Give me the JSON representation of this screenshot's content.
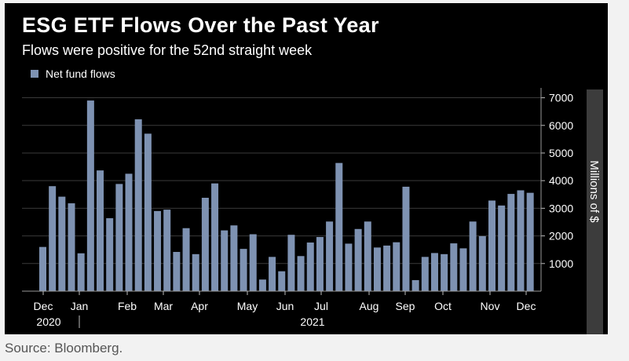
{
  "title": "ESG ETF Flows Over the Past Year",
  "subtitle": "Flows were positive for the 52nd straight week",
  "source": "Source: Bloomberg.",
  "colors": {
    "background": "#000000",
    "bar": "#7e92b2",
    "text": "#ffffff",
    "grid": "#3a3a3a",
    "unit_band": "#3c3c3c"
  },
  "chart_data": {
    "type": "bar",
    "legend": {
      "label": "Net fund flows",
      "position": "top-left"
    },
    "ylabel": "Millions of $",
    "ylim": [
      0,
      7300
    ],
    "yticks": [
      1000,
      2000,
      3000,
      4000,
      5000,
      6000,
      7000
    ],
    "ytick_labels": [
      "1000",
      "2000",
      "3000",
      "4000",
      "5000",
      "6000",
      "7000"
    ],
    "grid": true,
    "x_month_labels": [
      "Dec",
      "Jan",
      "Feb",
      "Mar",
      "Apr",
      "May",
      "Jun",
      "Jul",
      "Aug",
      "Sep",
      "Oct",
      "Nov",
      "Dec"
    ],
    "x_year_labels": [
      "2020",
      "2021"
    ],
    "series": [
      {
        "values": [
          1600,
          3800,
          3420,
          3180,
          1370,
          6900,
          4370,
          2640,
          3880,
          4250,
          6220,
          5700,
          2900,
          2950,
          1420,
          2280,
          1340,
          3380,
          3900,
          2200,
          2380,
          1530,
          2060,
          420,
          1240,
          720,
          2040,
          1270,
          1760,
          1960,
          2520,
          4640,
          1720,
          2250,
          2520,
          1580,
          1650,
          1770,
          3780,
          400,
          1240,
          1380,
          1340,
          1730,
          1550,
          2520,
          1990,
          3280,
          3100,
          3520,
          3650,
          3560
        ]
      }
    ]
  }
}
